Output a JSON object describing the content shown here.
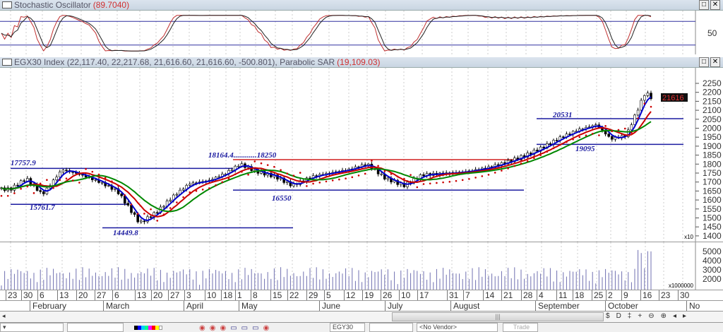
{
  "stochastic": {
    "title": "Stochastic Oscillator",
    "value": "(89.7040)",
    "axis_label": "50",
    "levels": [
      80,
      20
    ]
  },
  "price_panel": {
    "title": "EGX30 Index",
    "ohlc": "(22,117.40, 22,217.68, 21,616.60, 21,616.60, -500.801),",
    "sar_label": "Parabolic SAR",
    "sar_value": "(19,109.03)",
    "last_price": "21616",
    "scale_note": "x10"
  },
  "volume_panel": {
    "scale_note": "x1000000"
  },
  "window_buttons": [
    "□",
    "✕"
  ],
  "chart_data": {
    "type": "candlestick",
    "y_ticks": [
      2250,
      2200,
      2150,
      2100,
      2050,
      2000,
      1950,
      1900,
      1850,
      1800,
      1750,
      1700,
      1650,
      1600,
      1550,
      1500,
      1450,
      1400
    ],
    "ylim": [
      1400,
      2250
    ],
    "volume_ticks": [
      5000,
      4000,
      3000,
      2000
    ],
    "week_labels": [
      "23",
      "30",
      "6",
      "13",
      "20",
      "27",
      "6",
      "13",
      "20",
      "27",
      "3",
      "10",
      "18",
      "1",
      "8",
      "15",
      "22",
      "29",
      "5",
      "12",
      "19",
      "26",
      "10",
      "17",
      "31",
      "7",
      "14",
      "21",
      "28",
      "4",
      "11",
      "18",
      "25",
      "2",
      "9",
      "16",
      "23",
      "30"
    ],
    "weekly_close": [
      1660,
      1720,
      1630,
      1770,
      1740,
      1700,
      1650,
      1470,
      1530,
      1620,
      1690,
      1710,
      1750,
      1800,
      1760,
      1730,
      1680,
      1730,
      1750,
      1770,
      1800,
      1720,
      1680,
      1740,
      1750,
      1760,
      1780,
      1810,
      1850,
      1890,
      1950,
      1990,
      2020,
      1940,
      1960,
      2200
    ],
    "last_close": 2162,
    "months": [
      "February",
      "March",
      "April",
      "May",
      "June",
      "July",
      "August",
      "September",
      "October",
      "No"
    ],
    "annotations": [
      "17757.9",
      "15761.7",
      "14449.8",
      "18164.4............18250",
      "16550",
      "20531",
      "19095"
    ],
    "levels": [
      {
        "label": "17757.9",
        "value": 1776,
        "color": "#1a1aa0"
      },
      {
        "label": "15761.7",
        "value": 1576,
        "color": "#1a1aa0"
      },
      {
        "label": "14449.8",
        "value": 1445,
        "color": "#1a1aa0"
      },
      {
        "label": "18250",
        "value": 1825,
        "color": "#d02020"
      },
      {
        "label": "16550",
        "value": 1655,
        "color": "#1a1aa0"
      },
      {
        "label": "20531",
        "value": 2053,
        "color": "#1a1aa0"
      },
      {
        "label": "19095",
        "value": 1910,
        "color": "#1a1aa0"
      }
    ],
    "colors": {
      "ma_fast": "#0000cc",
      "ma_mid": "#cc0000",
      "ma_slow": "#008800",
      "sar": "#cc0000",
      "volume": "#7070b0"
    }
  },
  "scrollbar": {
    "grip": "|||"
  },
  "nav_icons": [
    "$",
    "D",
    "‡",
    "+",
    "⊖",
    "⊕",
    "◂",
    "▸"
  ],
  "toolbar": {
    "symbol": "EGY30",
    "vendor": "<No Vendor>",
    "trade": "Trade"
  }
}
